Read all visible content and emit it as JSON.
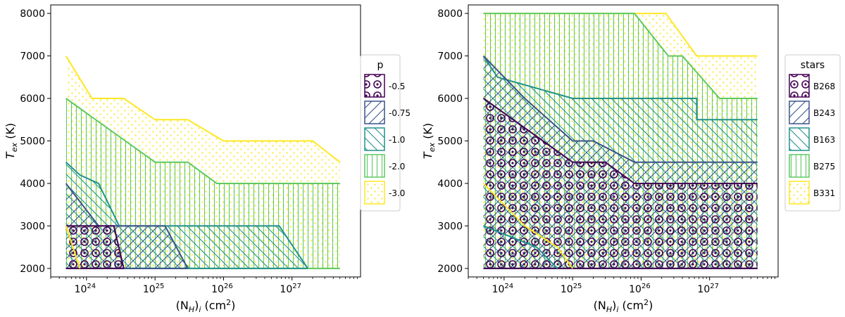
{
  "chart_data": [
    {
      "type": "area",
      "xlabel": "(N_H)_i (cm^2)",
      "ylabel": "T_ex (K)",
      "xscale": "log",
      "xlim": [
        3e+23,
        1e+28
      ],
      "ylim": [
        1800,
        8200
      ],
      "xticks": [
        {
          "value": 1e+24,
          "base": "10",
          "exp": "24"
        },
        {
          "value": 1e+25,
          "base": "10",
          "exp": "25"
        },
        {
          "value": 1e+26,
          "base": "10",
          "exp": "26"
        },
        {
          "value": 1e+27,
          "base": "10",
          "exp": "27"
        }
      ],
      "yticks": [
        {
          "value": 2000,
          "label": "2000"
        },
        {
          "value": 3000,
          "label": "3000"
        },
        {
          "value": 4000,
          "label": "4000"
        },
        {
          "value": 5000,
          "label": "5000"
        },
        {
          "value": 6000,
          "label": "6000"
        },
        {
          "value": 7000,
          "label": "7000"
        },
        {
          "value": 8000,
          "label": "8000"
        }
      ],
      "grid": false,
      "legend": {
        "title": "p",
        "placement": "outside-right"
      },
      "series": [
        {
          "name": "-3.0",
          "color": "#fde725",
          "hatch": "dots",
          "upper": [
            [
              5e+23,
              7000
            ],
            [
              1.2e+24,
              6000
            ],
            [
              3.5e+24,
              6000
            ],
            [
              1e+25,
              5500
            ],
            [
              3e+25,
              5500
            ],
            [
              1e+26,
              5000
            ],
            [
              2e+27,
              5000
            ],
            [
              5e+27,
              4500
            ]
          ],
          "lower": [
            [
              5e+23,
              2000
            ],
            [
              5e+27,
              2000
            ]
          ]
        },
        {
          "name": "-2.0",
          "color": "#5ec962",
          "hatch": "vertical",
          "upper": [
            [
              5e+23,
              6000
            ],
            [
              1e+25,
              4500
            ],
            [
              3e+25,
              4500
            ],
            [
              8e+25,
              4000
            ],
            [
              5e+27,
              4000
            ]
          ],
          "lower": [
            [
              5e+23,
              2000
            ],
            [
              5e+27,
              2000
            ]
          ]
        },
        {
          "name": "-1.0",
          "color": "#21918c",
          "hatch": "backslash",
          "upper": [
            [
              5e+23,
              4500
            ],
            [
              8e+23,
              4200
            ],
            [
              1.5e+24,
              4000
            ],
            [
              3e+24,
              3000
            ],
            [
              6.5e+26,
              3000
            ],
            [
              1.7e+27,
              2000
            ]
          ],
          "lower": [
            [
              5e+23,
              2000
            ],
            [
              1.7e+27,
              2000
            ]
          ]
        },
        {
          "name": "-0.75",
          "color": "#3b528b",
          "hatch": "slash",
          "upper": [
            [
              5e+23,
              4000
            ],
            [
              1.5e+24,
              3000
            ],
            [
              1.4e+25,
              3000
            ],
            [
              3e+25,
              2000
            ]
          ],
          "lower": [
            [
              5e+23,
              2000
            ],
            [
              3e+25,
              2000
            ]
          ]
        },
        {
          "name": "-0.5",
          "color": "#440154",
          "hatch": "ring",
          "upper": [
            [
              5e+23,
              3000
            ],
            [
              2.5e+24,
              3000
            ],
            [
              3.5e+24,
              2000
            ]
          ],
          "lower": [
            [
              5e+23,
              2000
            ],
            [
              3.5e+24,
              2000
            ]
          ]
        }
      ],
      "extra_lines": [
        {
          "color": "#fde725",
          "points": [
            [
              5e+23,
              3000
            ],
            [
              8e+23,
              2000
            ]
          ]
        }
      ]
    },
    {
      "type": "area",
      "xlabel": "(N_H)_i (cm^2)",
      "ylabel": "T_ex (K)",
      "xscale": "log",
      "xlim": [
        3e+23,
        1e+28
      ],
      "ylim": [
        1800,
        8200
      ],
      "xticks": [
        {
          "value": 1e+24,
          "base": "10",
          "exp": "24"
        },
        {
          "value": 1e+25,
          "base": "10",
          "exp": "25"
        },
        {
          "value": 1e+26,
          "base": "10",
          "exp": "26"
        },
        {
          "value": 1e+27,
          "base": "10",
          "exp": "27"
        }
      ],
      "yticks": [
        {
          "value": 2000,
          "label": "2000"
        },
        {
          "value": 3000,
          "label": "3000"
        },
        {
          "value": 4000,
          "label": "4000"
        },
        {
          "value": 5000,
          "label": "5000"
        },
        {
          "value": 6000,
          "label": "6000"
        },
        {
          "value": 7000,
          "label": "7000"
        },
        {
          "value": 8000,
          "label": "8000"
        }
      ],
      "grid": false,
      "legend": {
        "title": "stars",
        "placement": "outside-right"
      },
      "series": [
        {
          "name": "B331",
          "color": "#fde725",
          "hatch": "dots",
          "upper": [
            [
              5e+23,
              8000
            ],
            [
              2.3e+26,
              8000
            ],
            [
              6.5e+26,
              7000
            ],
            [
              5e+27,
              7000
            ]
          ],
          "lower": [
            [
              5e+23,
              2000
            ],
            [
              5e+27,
              2000
            ]
          ]
        },
        {
          "name": "B275",
          "color": "#5ec962",
          "hatch": "vertical",
          "upper": [
            [
              5e+23,
              8000
            ],
            [
              8e+25,
              8000
            ],
            [
              2.5e+26,
              7000
            ],
            [
              4e+26,
              7000
            ],
            [
              1.4e+27,
              6000
            ],
            [
              5e+27,
              6000
            ]
          ],
          "lower": [
            [
              5e+23,
              2000
            ],
            [
              5e+27,
              2000
            ]
          ]
        },
        {
          "name": "B163",
          "color": "#21918c",
          "hatch": "backslash",
          "upper": [
            [
              5e+23,
              7000
            ],
            [
              8e+23,
              6500
            ],
            [
              1e+25,
              6000
            ],
            [
              6.5e+26,
              6000
            ],
            [
              6.5e+26,
              5500
            ],
            [
              5e+27,
              5500
            ]
          ],
          "lower": [
            [
              5e+23,
              2000
            ],
            [
              5e+27,
              2000
            ]
          ]
        },
        {
          "name": "B243",
          "color": "#3b528b",
          "hatch": "slash",
          "upper": [
            [
              5e+23,
              7000
            ],
            [
              2e+24,
              6000
            ],
            [
              1e+25,
              5000
            ],
            [
              2e+25,
              5000
            ],
            [
              8e+25,
              4500
            ],
            [
              5e+27,
              4500
            ]
          ],
          "lower": [
            [
              5e+23,
              2000
            ],
            [
              5e+27,
              2000
            ]
          ]
        },
        {
          "name": "B268",
          "color": "#440154",
          "hatch": "ring",
          "upper": [
            [
              5e+23,
              6000
            ],
            [
              1e+25,
              4500
            ],
            [
              3e+25,
              4500
            ],
            [
              8e+25,
              4000
            ],
            [
              5e+27,
              4000
            ]
          ],
          "lower": [
            [
              5e+23,
              2000
            ],
            [
              5e+27,
              2000
            ]
          ]
        }
      ],
      "extra_lines": [
        {
          "color": "#fde725",
          "points": [
            [
              5e+23,
              4000
            ],
            [
              2e+24,
              3000
            ],
            [
              6e+24,
              2500
            ],
            [
              1e+25,
              2000
            ]
          ]
        },
        {
          "color": "#21918c",
          "points": [
            [
              5e+23,
              3000
            ],
            [
              3e+24,
              2500
            ],
            [
              6e+24,
              2000
            ]
          ]
        }
      ]
    }
  ]
}
